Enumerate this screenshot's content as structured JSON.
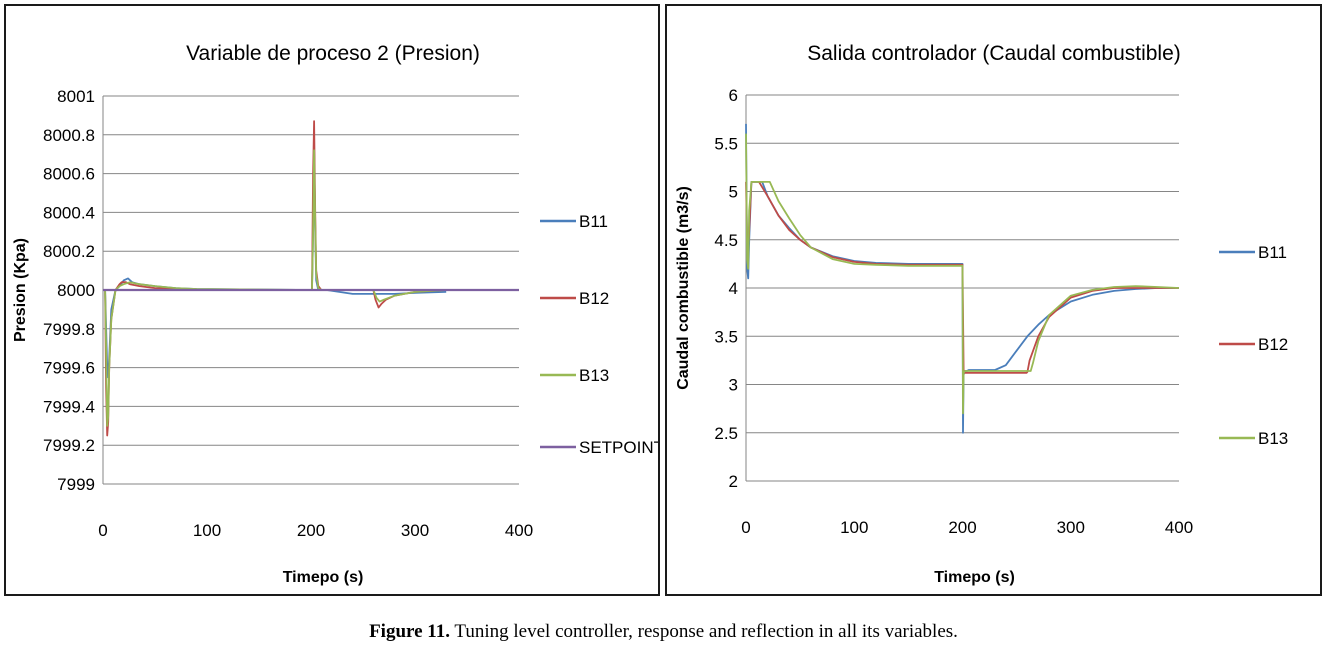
{
  "caption": {
    "label": "Figure 11.",
    "text": " Tuning level controller, response and reflection in all its variables."
  },
  "colors": {
    "B11": "#4a7ebb",
    "B12": "#be4b48",
    "B13": "#98b954",
    "SETPOINT": "#7d60a0"
  },
  "chart_data": [
    {
      "type": "line",
      "title": "Variable de proceso 2 (Presion)",
      "xlabel": "Timepo (s)",
      "ylabel": "Presion (Kpa)",
      "xlim": [
        0,
        400
      ],
      "ylim": [
        7999,
        8001
      ],
      "xticks": [
        0,
        100,
        200,
        300,
        400
      ],
      "yticks": [
        7999,
        7999.2,
        7999.4,
        7999.6,
        7999.8,
        8000,
        8000.2,
        8000.4,
        8000.6,
        8000.8,
        8001
      ],
      "yticklabels": [
        "7999",
        "7999.2",
        "7999.4",
        "7999.6",
        "7999.8",
        "8000",
        "8000.2",
        "8000.4",
        "8000.6",
        "8000.8",
        "8001"
      ],
      "grid": true,
      "legend_position": "right",
      "series": [
        {
          "name": "B11",
          "x": [
            0,
            2,
            4,
            5,
            6,
            8,
            12,
            16,
            20,
            24,
            28,
            35,
            50,
            70,
            90,
            200,
            201,
            202,
            203,
            204,
            205,
            207,
            210,
            215,
            240,
            255,
            260,
            265,
            270,
            280,
            300,
            330
          ],
          "y": [
            8000,
            8000,
            7999.6,
            7999.55,
            7999.65,
            7999.9,
            8000,
            8000.02,
            8000.05,
            8000.06,
            8000.04,
            8000.03,
            8000.02,
            8000.01,
            8000.005,
            8000,
            8000,
            8000.3,
            8000.72,
            8000.3,
            8000.05,
            8000,
            8000,
            8000,
            7999.98,
            7999.98,
            7999.98,
            7999.98,
            7999.98,
            7999.98,
            7999.985,
            7999.99
          ]
        },
        {
          "name": "B12",
          "x": [
            0,
            2,
            3,
            4,
            5,
            6,
            8,
            12,
            16,
            18,
            22,
            26,
            35,
            50,
            70,
            90,
            200,
            201,
            202,
            203,
            204,
            205,
            207,
            210,
            215,
            240,
            255,
            260,
            262,
            265,
            268,
            272,
            280,
            300,
            330
          ],
          "y": [
            8000,
            8000,
            7999.5,
            7999.25,
            7999.32,
            7999.6,
            7999.85,
            8000,
            8000.03,
            8000.04,
            8000.04,
            8000.03,
            8000.02,
            8000.01,
            8000.005,
            8000,
            8000,
            8000,
            8000.6,
            8000.87,
            8000.4,
            8000.1,
            8000.02,
            8000,
            8000,
            8000,
            8000,
            8000,
            7999.95,
            7999.91,
            7999.93,
            7999.95,
            7999.97,
            7999.99,
            8000
          ]
        },
        {
          "name": "B13",
          "x": [
            0,
            2,
            3,
            4,
            5,
            6,
            8,
            12,
            16,
            20,
            26,
            35,
            50,
            70,
            90,
            200,
            201,
            202,
            203,
            204,
            205,
            207,
            210,
            215,
            240,
            255,
            260,
            263,
            266,
            270,
            280,
            300,
            330
          ],
          "y": [
            8000,
            8000,
            7999.7,
            7999.3,
            7999.35,
            7999.6,
            7999.85,
            8000,
            8000.02,
            8000.03,
            8000.04,
            8000.03,
            8000.02,
            8000.01,
            8000.005,
            8000,
            8000,
            8000.3,
            8000.72,
            8000.35,
            8000.08,
            8000.01,
            8000,
            8000,
            8000,
            8000,
            8000,
            7999.96,
            7999.94,
            7999.95,
            7999.97,
            7999.99,
            8000
          ]
        },
        {
          "name": "SETPOINT",
          "x": [
            0,
            400
          ],
          "y": [
            8000,
            8000
          ]
        }
      ]
    },
    {
      "type": "line",
      "title": "Salida controlador (Caudal combustible)",
      "xlabel": "Timepo (s)",
      "ylabel": "Caudal combustible (m3/s)",
      "xlim": [
        0,
        400
      ],
      "ylim": [
        2,
        6
      ],
      "xticks": [
        0,
        100,
        200,
        300,
        400
      ],
      "yticks": [
        2,
        2.5,
        3,
        3.5,
        4,
        4.5,
        5,
        5.5,
        6
      ],
      "yticklabels": [
        "2",
        "2.5",
        "3",
        "3.5",
        "4",
        "4.5",
        "5",
        "5.5",
        "6"
      ],
      "grid": true,
      "legend_position": "right",
      "series": [
        {
          "name": "B11",
          "x": [
            0,
            1,
            2,
            3,
            5,
            8,
            15,
            20,
            30,
            40,
            50,
            60,
            80,
            100,
            120,
            150,
            199,
            200,
            200.5,
            201,
            202,
            204,
            206,
            210,
            230,
            240,
            250,
            260,
            270,
            280,
            300,
            320,
            340,
            360,
            380,
            400
          ],
          "y": [
            5.7,
            4.2,
            4.1,
            4.5,
            5.1,
            5.1,
            5.1,
            4.95,
            4.75,
            4.62,
            4.5,
            4.42,
            4.33,
            4.28,
            4.26,
            4.25,
            4.25,
            4.25,
            2.5,
            3.1,
            3.14,
            3.14,
            3.15,
            3.15,
            3.15,
            3.2,
            3.35,
            3.5,
            3.62,
            3.72,
            3.86,
            3.93,
            3.97,
            3.99,
            4,
            4
          ]
        },
        {
          "name": "B12",
          "x": [
            0,
            1,
            2,
            3,
            5,
            8,
            12,
            20,
            30,
            40,
            50,
            60,
            80,
            100,
            120,
            150,
            199,
            200,
            201,
            202,
            204,
            210,
            230,
            250,
            259,
            260,
            262,
            270,
            280,
            300,
            320,
            340,
            360,
            380,
            400
          ],
          "y": [
            5.1,
            4.5,
            4.4,
            4.6,
            5.1,
            5.1,
            5.1,
            4.95,
            4.75,
            4.6,
            4.5,
            4.42,
            4.32,
            4.27,
            4.25,
            4.24,
            4.24,
            4.24,
            3.15,
            3.12,
            3.12,
            3.12,
            3.12,
            3.12,
            3.12,
            3.13,
            3.25,
            3.5,
            3.7,
            3.9,
            3.97,
            4,
            4,
            4,
            4
          ]
        },
        {
          "name": "B13",
          "x": [
            0,
            1,
            2,
            3,
            5,
            8,
            18,
            22,
            30,
            40,
            50,
            60,
            80,
            100,
            120,
            150,
            199,
            200,
            200.5,
            201,
            202,
            204,
            210,
            230,
            250,
            263,
            265,
            270,
            280,
            300,
            320,
            340,
            360,
            380,
            400
          ],
          "y": [
            5.6,
            4.3,
            4.2,
            4.8,
            5.1,
            5.1,
            5.1,
            5.1,
            4.9,
            4.72,
            4.55,
            4.42,
            4.3,
            4.25,
            4.24,
            4.23,
            4.23,
            4.23,
            2.7,
            3.12,
            3.14,
            3.14,
            3.14,
            3.14,
            3.14,
            3.14,
            3.22,
            3.45,
            3.72,
            3.92,
            3.98,
            4.01,
            4.02,
            4.01,
            4
          ]
        }
      ]
    }
  ]
}
